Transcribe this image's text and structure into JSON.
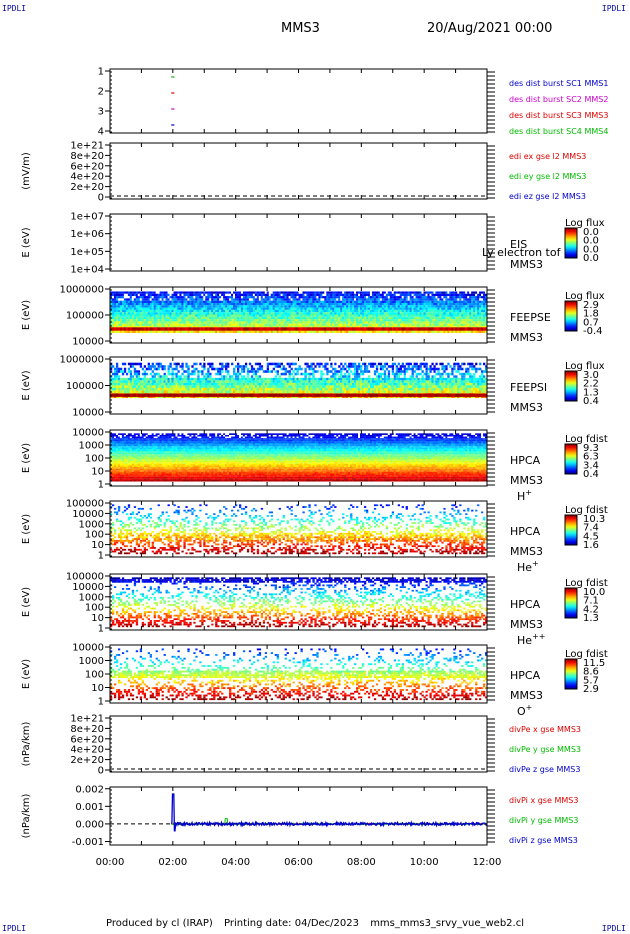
{
  "header": {
    "corner_tl": "IPDLI",
    "corner_tr": "IPDLI",
    "corner_bl": "IPDLI",
    "corner_br": "IPDLI",
    "spacecraft": "MMS3",
    "datetime": "20/Aug/2021 00:00"
  },
  "footer": {
    "produced_by": "Produced by cl (IRAP)",
    "printing_date": "Printing date: 04/Dec/2023",
    "source": "mms_mms3_srvy_vue_web2.cl"
  },
  "colors": {
    "mms1": "#0000cc",
    "mms2": "#cc00cc",
    "mms3": "#dd0000",
    "mms4": "#00bb00",
    "axis": "#000000"
  },
  "chart_data": [
    {
      "type": "line",
      "id": "burst",
      "ylabel": "",
      "ylim": [
        0.5,
        4.5
      ],
      "yticks": [
        "1",
        "2",
        "3",
        "4"
      ],
      "legend": [
        "des dist burst SC1 MMS1",
        "des dist burst SC2 MMS2",
        "des dist burst SC3 MMS3",
        "des dist burst SC4 MMS4"
      ],
      "legend_colors": [
        "#0000cc",
        "#cc00cc",
        "#dd0000",
        "#00bb00"
      ],
      "series": [
        {
          "name": "des dist burst SC1 MMS1",
          "level": 1,
          "t": [
            1.95,
            2.05
          ]
        },
        {
          "name": "des dist burst SC2 MMS2",
          "level": 2,
          "t": [
            1.95,
            2.05
          ]
        },
        {
          "name": "des dist burst SC3 MMS3",
          "level": 3,
          "t": [
            1.95,
            2.05
          ]
        },
        {
          "name": "des dist burst SC4 MMS4",
          "level": 4,
          "t": [
            1.95,
            2.05
          ]
        }
      ]
    },
    {
      "type": "line",
      "id": "edi",
      "ylabel": "(mV/m)",
      "yticks": [
        "1e+21",
        "8e+20",
        "6e+20",
        "4e+20",
        "2e+20",
        "0"
      ],
      "legend": [
        "edi ex gse l2 MMS3",
        "edi ey gse l2 MMS3",
        "edi ez gse l2 MMS3"
      ],
      "legend_colors": [
        "#dd0000",
        "#00bb00",
        "#0000cc"
      ]
    },
    {
      "type": "heatmap",
      "id": "eis",
      "ylabel": "E (eV)",
      "yticks": [
        "1e+07",
        "1e+06",
        "1e+05",
        "1e+04"
      ],
      "instrument": "EIS",
      "spacecraft": "MMS3",
      "species": "",
      "overlay_text": "Ly electron tof",
      "colorbar_title": "Log flux",
      "colorbar_ticks": [
        "0.0",
        "0.0",
        "0.0",
        "0.0"
      ]
    },
    {
      "type": "heatmap",
      "id": "feepse",
      "ylabel": "E (eV)",
      "yticks": [
        "1000000",
        "100000",
        "10000"
      ],
      "instrument": "FEEPSE",
      "spacecraft": "MMS3",
      "species": "",
      "colorbar_title": "Log flux",
      "colorbar_ticks": [
        "2.9",
        "1.8",
        "0.7",
        "-0.4"
      ]
    },
    {
      "type": "heatmap",
      "id": "feepsi",
      "ylabel": "E (eV)",
      "yticks": [
        "1000000",
        "100000",
        "10000"
      ],
      "instrument": "FEEPSI",
      "spacecraft": "MMS3",
      "species": "",
      "colorbar_title": "Log flux",
      "colorbar_ticks": [
        "3.0",
        "2.2",
        "1.3",
        "0.4"
      ]
    },
    {
      "type": "heatmap",
      "id": "hpca_h",
      "ylabel": "E (eV)",
      "yticks": [
        "10000",
        "1000",
        "100",
        "10",
        "1"
      ],
      "instrument": "HPCA",
      "spacecraft": "MMS3",
      "species": "H",
      "species_sup": "+",
      "colorbar_title": "Log fdist",
      "colorbar_ticks": [
        "9.3",
        "6.3",
        "3.4",
        "0.4"
      ]
    },
    {
      "type": "heatmap",
      "id": "hpca_he1",
      "ylabel": "E (eV)",
      "yticks": [
        "100000",
        "10000",
        "1000",
        "100",
        "10",
        "1"
      ],
      "instrument": "HPCA",
      "spacecraft": "MMS3",
      "species": "He",
      "species_sup": "+",
      "colorbar_title": "Log fdist",
      "colorbar_ticks": [
        "10.3",
        "7.4",
        "4.5",
        "1.6"
      ]
    },
    {
      "type": "heatmap",
      "id": "hpca_he2",
      "ylabel": "E (eV)",
      "yticks": [
        "100000",
        "10000",
        "1000",
        "100",
        "10",
        "1"
      ],
      "instrument": "HPCA",
      "spacecraft": "MMS3",
      "species": "He",
      "species_sup": "++",
      "colorbar_title": "Log fdist",
      "colorbar_ticks": [
        "10.0",
        "7.1",
        "4.2",
        "1.3"
      ]
    },
    {
      "type": "heatmap",
      "id": "hpca_o",
      "ylabel": "E (eV)",
      "yticks": [
        "10000",
        "1000",
        "100",
        "10",
        "1"
      ],
      "instrument": "HPCA",
      "spacecraft": "MMS3",
      "species": "O",
      "species_sup": "+",
      "colorbar_title": "Log fdist",
      "colorbar_ticks": [
        "11.5",
        "8.6",
        "5.7",
        "2.9"
      ]
    },
    {
      "type": "line",
      "id": "divpe",
      "ylabel": "(nPa/km)",
      "yticks": [
        "1e+21",
        "8e+20",
        "6e+20",
        "4e+20",
        "2e+20",
        "0"
      ],
      "legend": [
        "divPe x gse MMS3",
        "divPe y gse MMS3",
        "divPe z gse MMS3"
      ],
      "legend_colors": [
        "#dd0000",
        "#00bb00",
        "#0000cc"
      ]
    },
    {
      "type": "line",
      "id": "divpi",
      "ylabel": "(nPa/km)",
      "ylim": [
        -0.0012,
        0.0021
      ],
      "yticks": [
        "0.002",
        "0.001",
        "0.000",
        "-0.001"
      ],
      "ytick_values": [
        0.002,
        0.001,
        0.0,
        -0.001
      ],
      "legend": [
        "divPi x gse MMS3",
        "divPi y gse MMS3",
        "divPi z gse MMS3"
      ],
      "legend_colors": [
        "#dd0000",
        "#00bb00",
        "#0000cc"
      ],
      "spike": {
        "t": 2.0,
        "z_peak": 0.0017,
        "z_dip": -0.0004,
        "y_bump_t": 3.7,
        "y_bump": 0.0003
      }
    }
  ],
  "time_axis": {
    "xlim": [
      0,
      12
    ],
    "ticks": [
      "00:00",
      "02:00",
      "04:00",
      "06:00",
      "08:00",
      "10:00",
      "12:00"
    ],
    "tick_values": [
      0,
      2,
      4,
      6,
      8,
      10,
      12
    ]
  }
}
